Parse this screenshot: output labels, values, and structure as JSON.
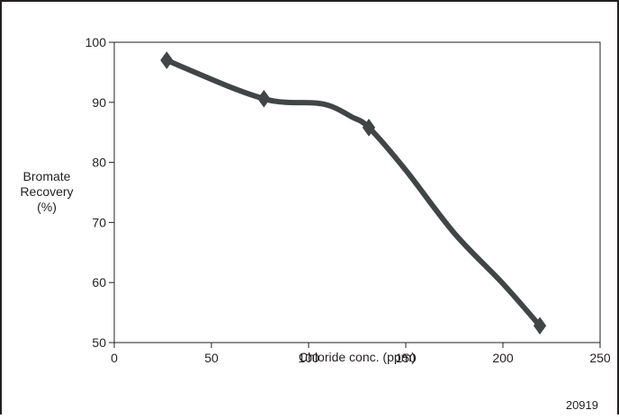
{
  "chart_data": {
    "type": "line",
    "xlabel": "Chloride conc. (ppm)",
    "ylabel_lines": [
      "Bromate",
      "Recovery",
      "(%)"
    ],
    "xlim": [
      0,
      250
    ],
    "ylim": [
      50,
      100
    ],
    "xticks": [
      0,
      50,
      100,
      150,
      200,
      250
    ],
    "yticks": [
      50,
      60,
      70,
      80,
      90,
      100
    ],
    "grid": false,
    "series": [
      {
        "color": "#414545",
        "points": [
          {
            "x": 27,
            "y": 97
          },
          {
            "x": 77,
            "y": 90.6
          },
          {
            "x": 131,
            "y": 85.8
          },
          {
            "x": 219,
            "y": 52.8
          }
        ],
        "curve": [
          {
            "x": 27,
            "y": 97
          },
          {
            "x": 60,
            "y": 92.5
          },
          {
            "x": 77,
            "y": 90.6
          },
          {
            "x": 88,
            "y": 90.0
          },
          {
            "x": 103,
            "y": 89.9
          },
          {
            "x": 112,
            "y": 89.3
          },
          {
            "x": 122,
            "y": 87.6
          },
          {
            "x": 131,
            "y": 85.8
          },
          {
            "x": 150,
            "y": 78.7
          },
          {
            "x": 175,
            "y": 68.2
          },
          {
            "x": 200,
            "y": 59.8
          },
          {
            "x": 219,
            "y": 52.8
          }
        ]
      }
    ]
  },
  "figure_id": "20919"
}
